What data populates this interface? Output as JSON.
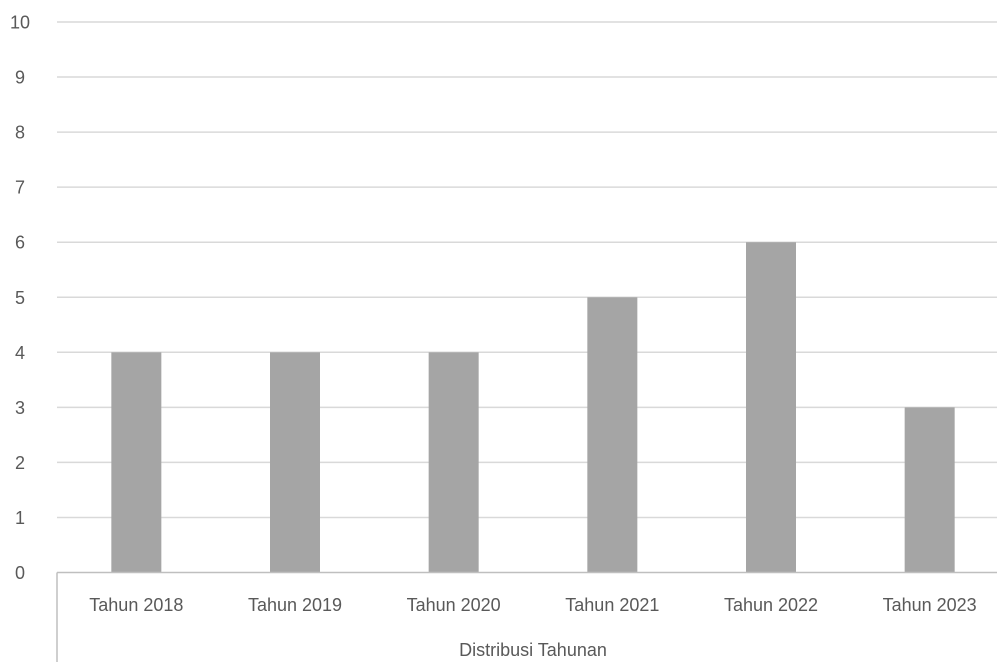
{
  "chart_data": {
    "type": "bar",
    "categories": [
      "Tahun 2018",
      "Tahun 2019",
      "Tahun 2020",
      "Tahun 2021",
      "Tahun 2022",
      "Tahun 2023"
    ],
    "values": [
      4,
      4,
      4,
      5,
      6,
      3
    ],
    "group_label": "Distribusi Tahunan",
    "yticks": [
      "0",
      "1",
      "2",
      "3",
      "4",
      "5",
      "6",
      "7",
      "8",
      "9",
      "10"
    ],
    "ylim": [
      0,
      10
    ],
    "grid": true,
    "legend": "none"
  },
  "colors": {
    "bar": "#a5a5a5",
    "grid": "#d9d9d9",
    "axis": "#bfbfbf",
    "text": "#595959"
  }
}
